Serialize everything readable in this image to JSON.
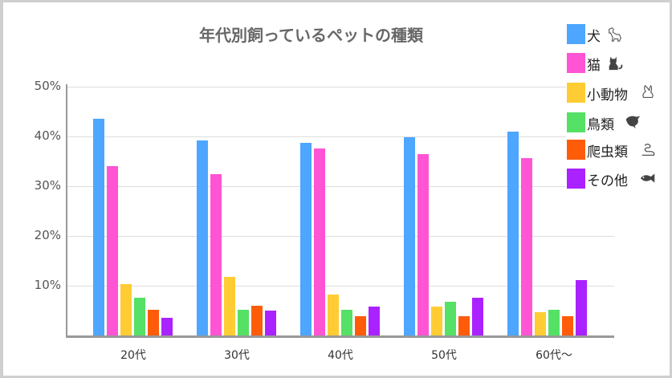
{
  "chart_data": {
    "type": "bar",
    "title": "年代別飼っているペットの種類",
    "xlabel": "",
    "ylabel": "",
    "ylim": [
      0,
      50
    ],
    "yticks": [
      "10%",
      "20%",
      "30%",
      "40%",
      "50%"
    ],
    "grid": true,
    "legend_position": "top-right",
    "categories": [
      "20代",
      "30代",
      "40代",
      "50代",
      "60代～"
    ],
    "series": [
      {
        "name": "犬",
        "color": "#4da6ff",
        "icon": "dog-icon",
        "values": [
          43.5,
          39.2,
          38.7,
          39.8,
          41.0
        ]
      },
      {
        "name": "猫",
        "color": "#ff55d4",
        "icon": "cat-icon",
        "values": [
          34.0,
          32.4,
          37.6,
          36.5,
          35.6
        ]
      },
      {
        "name": "小動物",
        "color": "#ffcc33",
        "icon": "rabbit-icon",
        "values": [
          10.3,
          11.8,
          8.2,
          5.8,
          4.7
        ]
      },
      {
        "name": "鳥類",
        "color": "#55e066",
        "icon": "bird-icon",
        "values": [
          7.6,
          5.2,
          5.2,
          6.8,
          5.2
        ]
      },
      {
        "name": "爬虫類",
        "color": "#ff5c0a",
        "icon": "snake-icon",
        "values": [
          5.1,
          6.0,
          3.9,
          3.9,
          3.9
        ]
      },
      {
        "name": "その他",
        "color": "#aa22ff",
        "icon": "fish-icon",
        "values": [
          3.5,
          5.0,
          5.8,
          7.6,
          11.1
        ]
      }
    ]
  }
}
